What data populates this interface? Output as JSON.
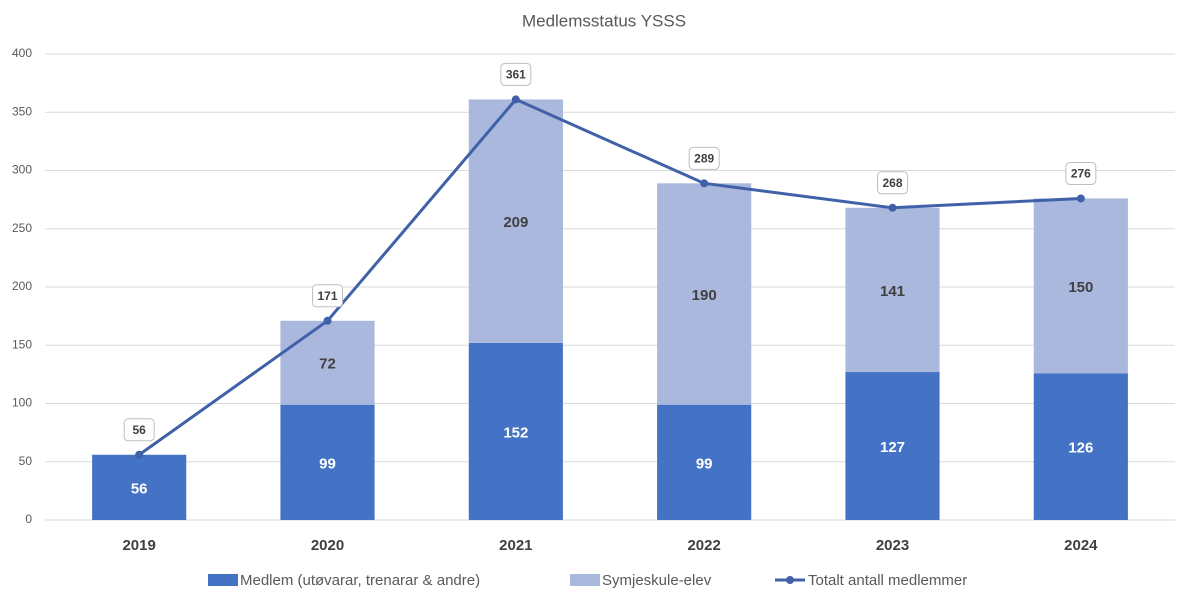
{
  "chart_data": {
    "type": "bar",
    "stacked": true,
    "title": "Medlemsstatus  YSSS",
    "categories": [
      "2019",
      "2020",
      "2021",
      "2022",
      "2023",
      "2024"
    ],
    "series": [
      {
        "name": "Medlem (utøvarar, trenarar & andre)",
        "color": "#4472c4",
        "values": [
          56,
          99,
          152,
          99,
          127,
          126
        ]
      },
      {
        "name": "Symjeskule-elev",
        "color": "#a9b8dc",
        "values": [
          null,
          72,
          209,
          190,
          141,
          150
        ]
      },
      {
        "name": "Totalt antall medlemmer",
        "color": "#4061a8",
        "type": "line",
        "values": [
          56,
          171,
          361,
          289,
          268,
          276
        ]
      }
    ],
    "ylim": [
      0,
      400
    ],
    "yticks": [
      0,
      50,
      100,
      150,
      200,
      250,
      300,
      350,
      400
    ],
    "grid": true,
    "legend": "bottom"
  }
}
